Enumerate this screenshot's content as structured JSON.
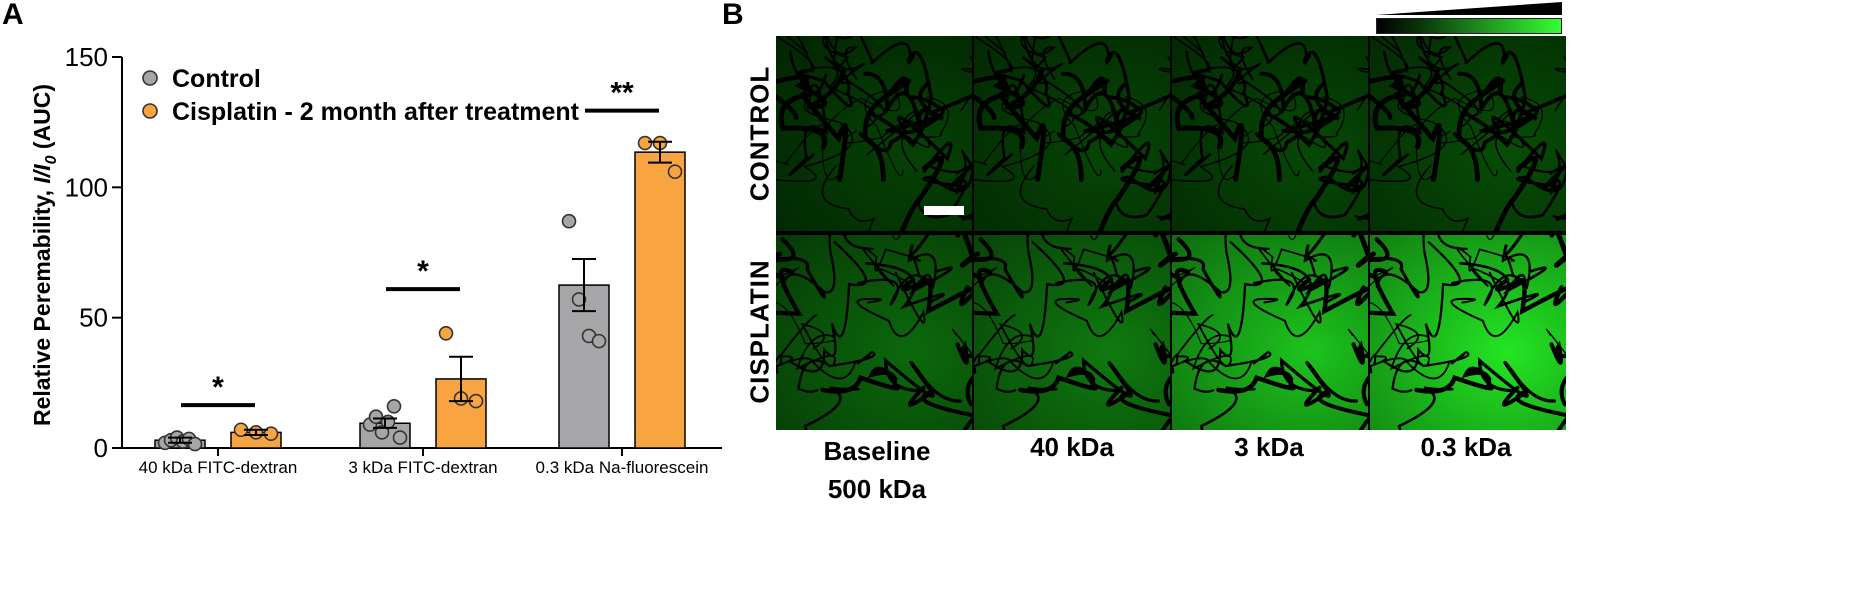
{
  "panel_labels": {
    "a": "A",
    "b": "B"
  },
  "chart_data": {
    "type": "bar",
    "ylabel_prefix": "Relative Peremability, ",
    "ylabel_ratio": "I/I",
    "ylabel_sub": "0",
    "ylabel_suffix": " (AUC)",
    "ylim": [
      0,
      150
    ],
    "yticks": [
      0,
      50,
      100,
      150
    ],
    "categories": [
      "40 kDa FITC-dextran",
      "3 kDa FITC-dextran",
      "0.3 kDa Na-fluorescein"
    ],
    "series": [
      {
        "name": "Control",
        "color": "#a6a6a8",
        "values": [
          3.0,
          9.5,
          62.5
        ],
        "sem": [
          1.0,
          1.8,
          10.0
        ],
        "points": [
          [
            2.0,
            3.0,
            4.0,
            2.5,
            3.5,
            1.5
          ],
          [
            9.0,
            12.0,
            6.0,
            10.0,
            16.0,
            4.0
          ],
          [
            87.0,
            57.0,
            43.0,
            41.0
          ]
        ]
      },
      {
        "name": "Cisplatin  - 2 month after treatment",
        "color": "#f8a541",
        "values": [
          6.0,
          26.5,
          113.5
        ],
        "sem": [
          1.0,
          8.5,
          4.0
        ],
        "points": [
          [
            7.0,
            6.0,
            5.5
          ],
          [
            44.0,
            19.0,
            18.0
          ],
          [
            117.0,
            117.0,
            106.0
          ]
        ]
      }
    ],
    "significance": [
      "*",
      "*",
      "**"
    ],
    "grid": false,
    "legend_position": "top-left"
  },
  "panel_b": {
    "row_labels": [
      "CONTROL",
      "CISPLATIN"
    ],
    "column_labels": [
      "Baseline\n500 kDa",
      "40 kDa",
      "3 kDa",
      "0.3 kDa"
    ],
    "control_green_level": [
      0.12,
      0.14,
      0.15,
      0.17
    ],
    "cisplatin_green_level": [
      0.3,
      0.38,
      0.72,
      0.88
    ]
  }
}
